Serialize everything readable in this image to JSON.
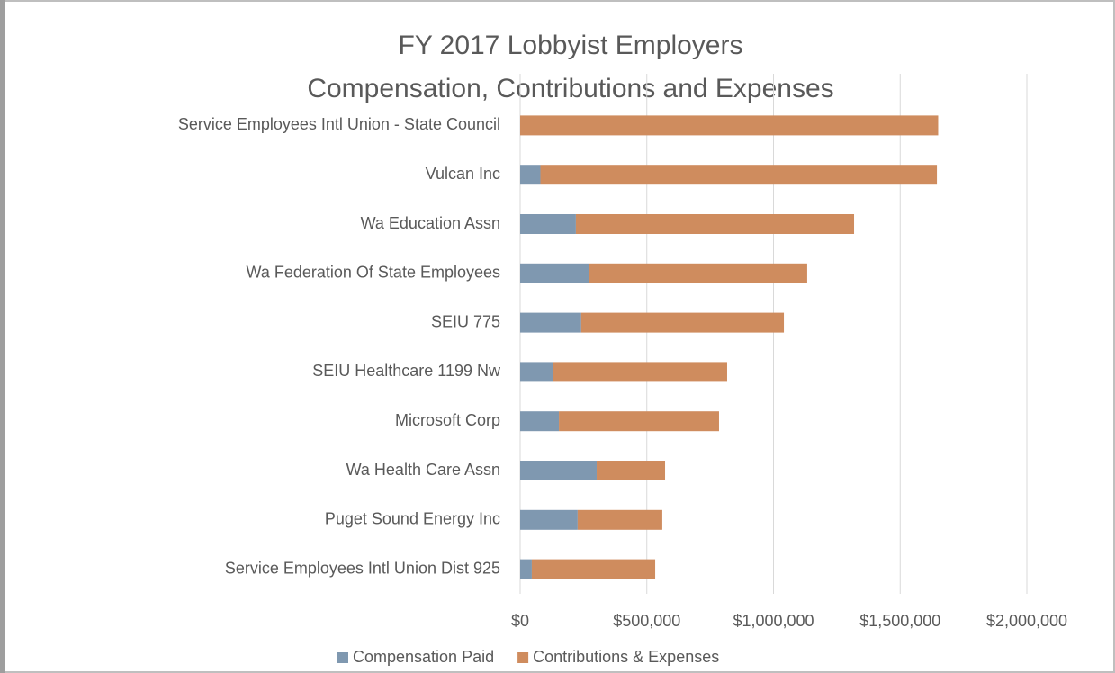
{
  "chart_data": {
    "type": "stacked_barh",
    "title": [
      "FY 2017 Lobbyist Employers",
      "Compensation, Contributions and Expenses"
    ],
    "categories": [
      "Service Employees Intl Union - State Council",
      "Vulcan Inc",
      "Wa Education Assn",
      "Wa Federation Of State Employees",
      "SEIU 775",
      "SEIU Healthcare 1199 Nw",
      "Microsoft Corp",
      "Wa Health Care Assn",
      "Puget Sound Energy Inc",
      "Service Employees Intl Union Dist 925"
    ],
    "series": [
      {
        "name": "Compensation Paid",
        "color": "#7f98b0",
        "values": [
          0,
          80000,
          220000,
          270000,
          241000,
          131000,
          153000,
          302000,
          227000,
          46000
        ]
      },
      {
        "name": "Contributions & Expenses",
        "color": "#cf8c5e",
        "values": [
          1650000,
          1565000,
          1098000,
          863000,
          800000,
          686000,
          632000,
          270000,
          334000,
          487000
        ]
      }
    ],
    "xlim": [
      0,
      2000000
    ],
    "xticks": [
      {
        "value": 0,
        "label": "$0"
      },
      {
        "value": 500000,
        "label": "$500,000"
      },
      {
        "value": 1000000,
        "label": "$1,000,000"
      },
      {
        "value": 1500000,
        "label": "$1,500,000"
      },
      {
        "value": 2000000,
        "label": "$2,000,000"
      }
    ],
    "grid": true,
    "legend": "bottom"
  }
}
